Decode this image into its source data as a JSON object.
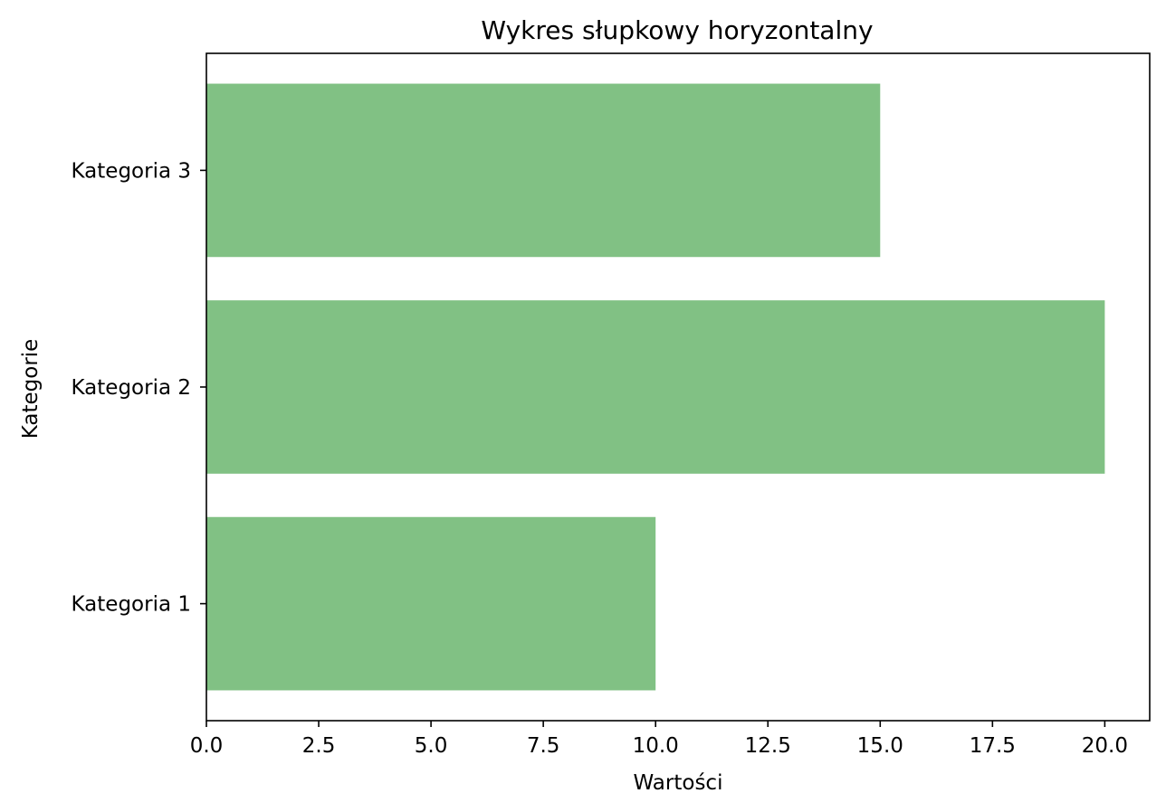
{
  "chart_data": {
    "type": "bar",
    "orientation": "horizontal",
    "title": "Wykres słupkowy horyzontalny",
    "xlabel": "Wartości",
    "ylabel": "Kategorie",
    "categories": [
      "Kategoria 1",
      "Kategoria 2",
      "Kategoria 3"
    ],
    "values": [
      10,
      20,
      15
    ],
    "xlim": [
      0,
      21
    ],
    "xticks": [
      0.0,
      2.5,
      5.0,
      7.5,
      10.0,
      12.5,
      15.0,
      17.5,
      20.0
    ],
    "xtick_labels": [
      "0.0",
      "2.5",
      "5.0",
      "7.5",
      "10.0",
      "12.5",
      "15.0",
      "17.5",
      "20.0"
    ],
    "grid": false,
    "legend": "none",
    "bar_color": "#81c184"
  }
}
